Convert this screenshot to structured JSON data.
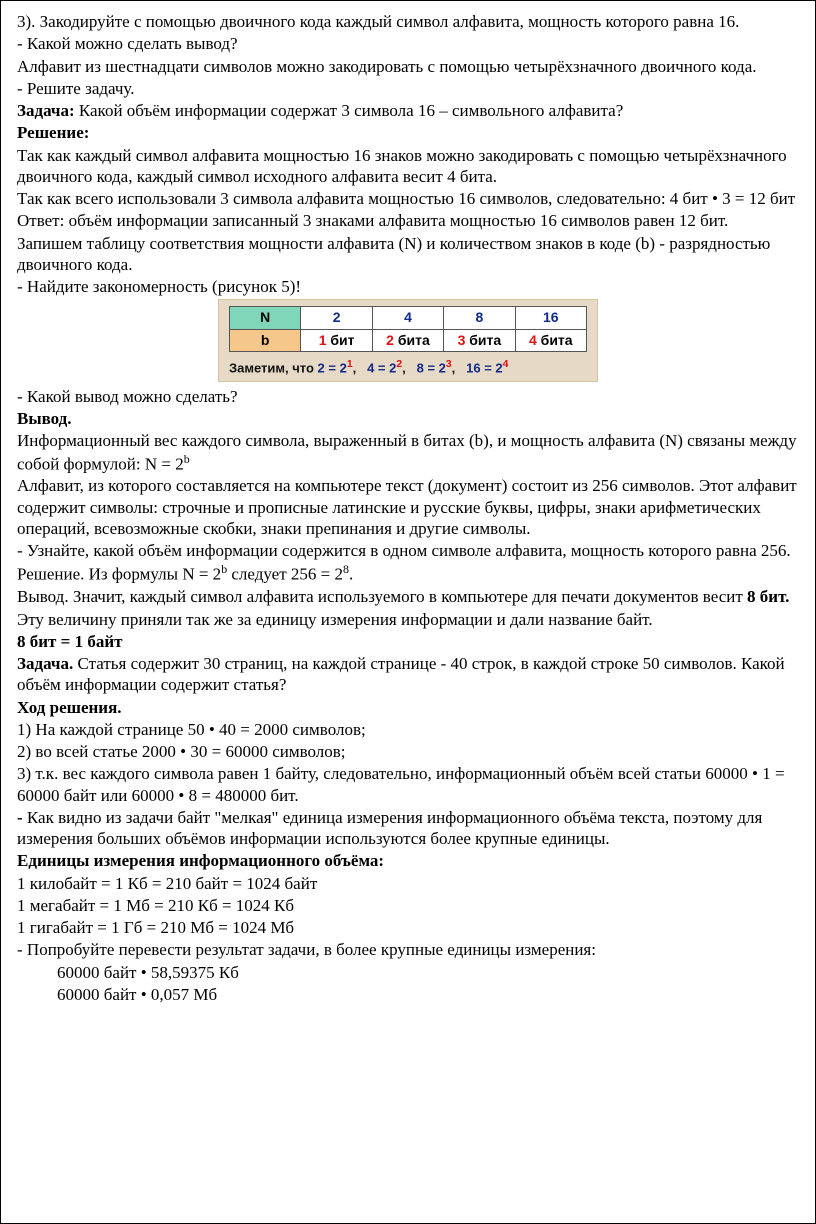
{
  "p1": "3). Закодируйте с помощью двоичного кода каждый символ алфавита, мощность которого равна 16.",
  "p2": "- Какой можно сделать вывод?",
  "p3": "Алфавит из шестнадцати символов можно закодировать с помощью четырёхзначного двоичного кода.",
  "p4": "- Решите задачу.",
  "p5_pre": "Задача: ",
  "p5_rest": "Какой объём информации содержат 3 символа 16 – символьного алфавита?",
  "p6": "Решение:",
  "p7": "Так как каждый символ алфавита мощностью 16 знаков можно закодировать с помощью четырёхзначного двоичного кода, каждый символ исходного алфавита весит 4 бита.",
  "p8": "Так как всего использовали 3 символа алфавита мощностью 16 символов, следовательно: 4 бит • 3 = 12 бит",
  "p9": "Ответ: объём информации записанный 3 знаками алфавита мощностью 16 символов равен 12 бит.",
  "p10": "Запишем таблицу соответствия мощности алфавита (N) и количеством знаков в коде (b) - разрядностью двоичного кода.",
  "p11": "- Найдите закономерность (рисунок 5)!",
  "fig": {
    "row1": {
      "h": "N",
      "cells": [
        "2",
        "4",
        "8",
        "16"
      ]
    },
    "row2": {
      "h": "b",
      "cells": [
        {
          "red": "1",
          "txt": " бит"
        },
        {
          "red": "2",
          "txt": " бита"
        },
        {
          "red": "3",
          "txt": " бита"
        },
        {
          "red": "4",
          "txt": " бита"
        }
      ]
    },
    "note_pre": "Заметим, что  ",
    "eqs": [
      {
        "lhs": "2 = 2",
        "pow": "1"
      },
      {
        "lhs": "4 = 2",
        "pow": "2"
      },
      {
        "lhs": "8 = 2",
        "pow": "3"
      },
      {
        "lhs": "16 = 2",
        "pow": "4"
      }
    ]
  },
  "p12": "- Какой вывод можно сделать?",
  "p13": "Вывод.",
  "p14a": "Информационный вес каждого символа, выраженный в битах (b), и мощность алфавита (N) связаны между собой формулой: N = 2",
  "p14b": "b",
  "p15": "Алфавит, из которого составляется на компьютере текст (документ) состоит из 256 символов. Этот алфавит содержит символы: строчные и прописные латинские и русские буквы, цифры, знаки арифметических операций, всевозможные скобки, знаки препинания и другие символы.",
  "p16": "- Узнайте, какой объём информации содержится в одном символе алфавита, мощность которого равна 256.",
  "p17a": "Решение. Из формулы N = 2",
  "p17b": "b",
  "p17c": " следует 256 = 2",
  "p17d": "8",
  "p17e": ".",
  "p18a": "Вывод. Значит, каждый символ алфавита используемого в компьютере для печати документов весит ",
  "p18b": "8 бит.",
  "p19": "Эту величину приняли так же за единицу измерения информации и дали название байт.",
  "p20": "8 бит = 1 байт",
  "p21_pre": "Задача. ",
  "p21_rest": "Статья содержит 30 страниц, на каждой странице - 40 строк, в каждой строке 50 символов. Какой объём информации содержит статья?",
  "p22": "Ход решения.",
  "p23": "1) На каждой странице 50 • 40 = 2000 символов;",
  "p24": "2) во всей статье 2000 • 30 = 60000 символов;",
  "p25": "3) т.к. вес каждого символа равен 1 байту, следовательно, информационный объём всей статьи 60000 • 1 = 60000 байт или 60000 • 8 = 480000 бит.",
  "p26_pre": "- ",
  "p26_rest": "Как видно из задачи байт \"мелкая\" единица измерения информационного объёма текста, поэтому для измерения больших объёмов информации используются более крупные единицы.",
  "p27": "Единицы измерения информационного объёма:",
  "p28": "1 килобайт = 1 Кб = 210 байт = 1024 байт",
  "p29": "1 мегабайт = 1 Мб = 210 Кб = 1024 Кб",
  "p30": "1 гигабайт = 1 Гб = 210 Мб = 1024 Мб",
  "p31": "- Попробуйте перевести результат задачи, в более крупные единицы измерения:",
  "p32": "60000 байт • 58,59375 Кб",
  "p33": "60000 байт • 0,057 Мб"
}
